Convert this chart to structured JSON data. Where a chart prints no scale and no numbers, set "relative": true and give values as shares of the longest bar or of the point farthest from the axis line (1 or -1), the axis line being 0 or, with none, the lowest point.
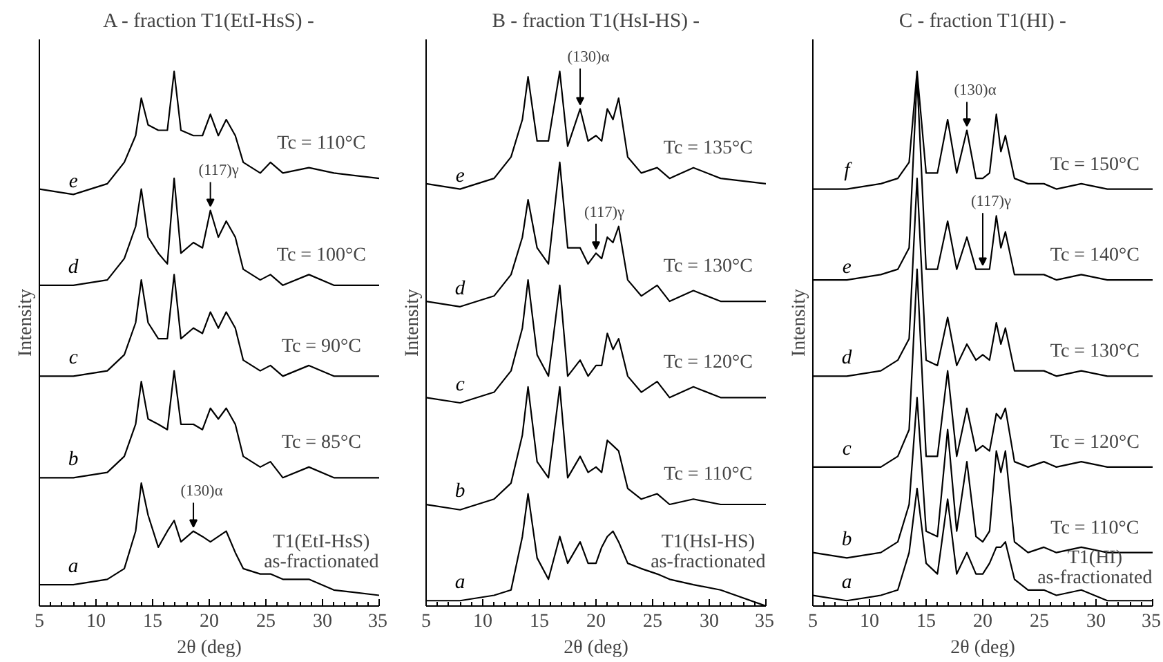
{
  "chart_data": [
    {
      "type": "line",
      "title": "A - fraction T1(EtI-HsS) -",
      "xlabel": "2θ (deg)",
      "ylabel": "Intensity",
      "relative": true,
      "tick_labels": "x",
      "xlim": [
        5,
        35
      ],
      "xticks": [
        5,
        10,
        15,
        20,
        25,
        30,
        35
      ],
      "x": [
        5,
        8,
        11,
        12.5,
        13.5,
        14,
        14.6,
        15.5,
        16.3,
        16.9,
        17.5,
        18.6,
        19.4,
        20.1,
        20.8,
        21.5,
        22.3,
        23,
        24.5,
        25.4,
        26.5,
        28.8,
        31,
        35
      ],
      "series": [
        {
          "name": "e",
          "color": "#000000",
          "values": [
            0.78,
            0.77,
            0.79,
            0.83,
            0.88,
            0.95,
            0.9,
            0.89,
            0.89,
            1.0,
            0.89,
            0.88,
            0.88,
            0.92,
            0.88,
            0.91,
            0.88,
            0.83,
            0.81,
            0.83,
            0.81,
            0.82,
            0.81,
            0.8
          ]
        },
        {
          "name": "d",
          "color": "#000000",
          "values": [
            0.6,
            0.6,
            0.61,
            0.65,
            0.71,
            0.78,
            0.69,
            0.66,
            0.64,
            0.8,
            0.66,
            0.68,
            0.67,
            0.74,
            0.69,
            0.72,
            0.69,
            0.63,
            0.61,
            0.62,
            0.6,
            0.62,
            0.6,
            0.6
          ]
        },
        {
          "name": "c",
          "color": "#000000",
          "values": [
            0.43,
            0.43,
            0.44,
            0.47,
            0.53,
            0.61,
            0.53,
            0.5,
            0.5,
            0.62,
            0.5,
            0.52,
            0.51,
            0.55,
            0.52,
            0.55,
            0.52,
            0.46,
            0.44,
            0.45,
            0.43,
            0.45,
            0.43,
            0.43
          ]
        },
        {
          "name": "b",
          "color": "#000000",
          "values": [
            0.24,
            0.24,
            0.25,
            0.28,
            0.34,
            0.42,
            0.35,
            0.34,
            0.33,
            0.44,
            0.34,
            0.34,
            0.33,
            0.37,
            0.35,
            0.37,
            0.34,
            0.28,
            0.26,
            0.27,
            0.24,
            0.26,
            0.24,
            0.24
          ]
        },
        {
          "name": "a",
          "color": "#000000",
          "values": [
            0.04,
            0.04,
            0.05,
            0.07,
            0.14,
            0.23,
            0.17,
            0.11,
            0.14,
            0.16,
            0.12,
            0.14,
            0.13,
            0.12,
            0.13,
            0.14,
            0.1,
            0.07,
            0.06,
            0.06,
            0.05,
            0.05,
            0.03,
            0.02
          ]
        }
      ],
      "annotations": [
        "Tc = 110°C",
        "Tc = 100°C",
        "Tc = 90°C",
        "Tc = 85°C",
        "T1(EtI-HsS)",
        "as-fractionated",
        {
          "text": "(117)γ",
          "x": 20.1,
          "y": 0.74
        },
        {
          "text": "(130)α",
          "x": 18.6,
          "y": 0.14
        }
      ]
    },
    {
      "type": "line",
      "title": "B - fraction T1(HsI-HS) -",
      "xlabel": "2θ (deg)",
      "ylabel": "Intensity",
      "relative": true,
      "tick_labels": "x",
      "xlim": [
        5,
        35
      ],
      "xticks": [
        5,
        10,
        15,
        20,
        25,
        30,
        35
      ],
      "x": [
        5,
        8,
        11,
        12.5,
        13.5,
        14,
        14.8,
        15.8,
        16.8,
        17.5,
        18.6,
        19.3,
        20,
        20.5,
        21,
        21.5,
        22,
        22.8,
        24,
        25.4,
        26.5,
        28.6,
        31,
        35
      ],
      "series": [
        {
          "name": "e",
          "color": "#000000",
          "values": [
            0.79,
            0.78,
            0.8,
            0.84,
            0.91,
            0.99,
            0.87,
            0.87,
            1.0,
            0.86,
            0.93,
            0.87,
            0.88,
            0.87,
            0.93,
            0.91,
            0.95,
            0.84,
            0.81,
            0.82,
            0.8,
            0.82,
            0.8,
            0.79
          ]
        },
        {
          "name": "d",
          "color": "#000000",
          "values": [
            0.57,
            0.56,
            0.58,
            0.62,
            0.69,
            0.76,
            0.67,
            0.64,
            0.83,
            0.67,
            0.67,
            0.64,
            0.66,
            0.65,
            0.69,
            0.68,
            0.71,
            0.61,
            0.58,
            0.6,
            0.57,
            0.59,
            0.57,
            0.57
          ]
        },
        {
          "name": "c",
          "color": "#000000",
          "values": [
            0.39,
            0.38,
            0.4,
            0.44,
            0.52,
            0.61,
            0.47,
            0.43,
            0.6,
            0.43,
            0.46,
            0.43,
            0.45,
            0.45,
            0.51,
            0.48,
            0.5,
            0.43,
            0.4,
            0.42,
            0.39,
            0.41,
            0.39,
            0.39
          ]
        },
        {
          "name": "b",
          "color": "#000000",
          "values": [
            0.19,
            0.18,
            0.2,
            0.23,
            0.32,
            0.41,
            0.27,
            0.24,
            0.41,
            0.24,
            0.28,
            0.25,
            0.26,
            0.25,
            0.31,
            0.3,
            0.29,
            0.22,
            0.2,
            0.21,
            0.19,
            0.2,
            0.19,
            0.19
          ]
        },
        {
          "name": "a",
          "color": "#000000",
          "values": [
            0.01,
            0.01,
            0.02,
            0.03,
            0.13,
            0.21,
            0.09,
            0.05,
            0.13,
            0.08,
            0.12,
            0.08,
            0.08,
            0.11,
            0.13,
            0.14,
            0.12,
            0.08,
            0.07,
            0.06,
            0.05,
            0.04,
            0.03,
            0.0
          ]
        }
      ],
      "annotations": [
        "Tc = 135°C",
        "Tc = 130°C",
        "Tc = 120°C",
        "Tc = 110°C",
        "T1(HsI-HS)",
        "as-fractionated",
        {
          "text": "(130)α",
          "x": 18.6,
          "y": 0.93
        },
        {
          "text": "(117)γ",
          "x": 20,
          "y": 0.66
        }
      ]
    },
    {
      "type": "line",
      "title": "C - fraction T1(HI) -",
      "xlabel": "2θ (deg)",
      "ylabel": "Intensity",
      "relative": true,
      "tick_labels": "x",
      "xlim": [
        5,
        35
      ],
      "xticks": [
        5,
        10,
        15,
        20,
        25,
        30,
        35
      ],
      "x": [
        5,
        8,
        11,
        12.5,
        13.5,
        14.2,
        15,
        16,
        16.9,
        17.7,
        18.6,
        19.4,
        20,
        20.6,
        21.2,
        21.6,
        22,
        22.8,
        24,
        25.4,
        26.5,
        28.7,
        31,
        35
      ],
      "series": [
        {
          "name": "f",
          "color": "#000000",
          "values": [
            0.78,
            0.78,
            0.79,
            0.8,
            0.83,
            1.0,
            0.81,
            0.81,
            0.91,
            0.81,
            0.89,
            0.8,
            0.8,
            0.81,
            0.92,
            0.85,
            0.88,
            0.8,
            0.79,
            0.79,
            0.78,
            0.79,
            0.78,
            0.78
          ]
        },
        {
          "name": "e",
          "color": "#000000",
          "values": [
            0.61,
            0.61,
            0.62,
            0.63,
            0.67,
            0.99,
            0.63,
            0.63,
            0.72,
            0.63,
            0.69,
            0.63,
            0.63,
            0.63,
            0.73,
            0.67,
            0.7,
            0.62,
            0.62,
            0.62,
            0.61,
            0.62,
            0.61,
            0.61
          ]
        },
        {
          "name": "d",
          "color": "#000000",
          "values": [
            0.43,
            0.43,
            0.44,
            0.46,
            0.5,
            0.8,
            0.46,
            0.45,
            0.54,
            0.45,
            0.49,
            0.46,
            0.47,
            0.46,
            0.53,
            0.49,
            0.52,
            0.44,
            0.44,
            0.44,
            0.43,
            0.44,
            0.43,
            0.43
          ]
        },
        {
          "name": "c",
          "color": "#000000",
          "values": [
            0.26,
            0.26,
            0.26,
            0.28,
            0.33,
            0.63,
            0.28,
            0.28,
            0.44,
            0.28,
            0.37,
            0.29,
            0.3,
            0.29,
            0.36,
            0.35,
            0.37,
            0.27,
            0.26,
            0.27,
            0.26,
            0.27,
            0.26,
            0.26
          ]
        },
        {
          "name": "b",
          "color": "#000000",
          "values": [
            0.1,
            0.09,
            0.1,
            0.12,
            0.19,
            0.39,
            0.14,
            0.13,
            0.33,
            0.14,
            0.27,
            0.13,
            0.12,
            0.14,
            0.29,
            0.25,
            0.29,
            0.12,
            0.1,
            0.11,
            0.1,
            0.11,
            0.1,
            0.1
          ]
        },
        {
          "name": "a",
          "color": "#000000",
          "values": [
            0.02,
            0.01,
            0.02,
            0.03,
            0.1,
            0.22,
            0.08,
            0.06,
            0.2,
            0.06,
            0.1,
            0.06,
            0.06,
            0.08,
            0.11,
            0.11,
            0.12,
            0.05,
            0.03,
            0.03,
            0.02,
            0.03,
            0.01,
            0.01
          ]
        }
      ],
      "annotations": [
        "Tc = 150°C",
        "Tc = 140°C",
        "Tc = 130°C",
        "Tc = 120°C",
        "Tc = 110°C",
        "T1(HI)",
        "as-fractionated",
        {
          "text": "(130)α",
          "x": 18.6,
          "y": 0.89
        },
        {
          "text": "(117)γ",
          "x": 20,
          "y": 0.63
        }
      ]
    }
  ]
}
